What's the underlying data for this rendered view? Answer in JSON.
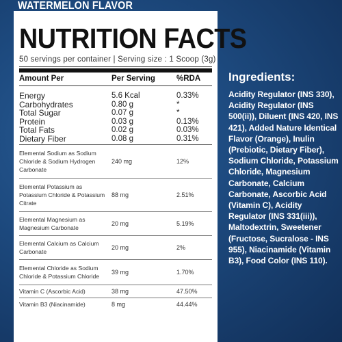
{
  "flavor": "WATERMELON FLAVOR",
  "title": "NUTRITION FACTS",
  "serving_info": "50 servings per container | Serving size : 1 Scoop (3g)",
  "columns": [
    "Amount Per",
    "Per Serving",
    "%RDA"
  ],
  "main_rows": [
    {
      "name": "Energy",
      "amount": "5.6 Kcal",
      "rda": "0.33%"
    },
    {
      "name": "Carbohydrates",
      "amount": "0.80 g",
      "rda": "*"
    },
    {
      "name": "Total Sugar",
      "amount": "0.07 g",
      "rda": "*"
    },
    {
      "name": "Protein",
      "amount": "0.03 g",
      "rda": "0.13%"
    },
    {
      "name": "Total Fats",
      "amount": "0.02 g",
      "rda": "0.03%"
    },
    {
      "name": "Dietary Fiber",
      "amount": "0.08 g",
      "rda": "0.31%"
    }
  ],
  "sub_rows": [
    {
      "name": "Elemental Sodium as Sodium Chloride & Sodium Hydrogen Carbonate",
      "amount": "240 mg",
      "rda": "12%"
    },
    {
      "name": "Elemental Potassium as Potassium Chloride & Potassium Citrate",
      "amount": "88 mg",
      "rda": "2.51%"
    },
    {
      "name": "Elemental Magnesium as Magnesium Carbonate",
      "amount": "20 mg",
      "rda": "5.19%"
    },
    {
      "name": "Elemental Calcium as Calcium Carbonate",
      "amount": "20 mg",
      "rda": "2%"
    },
    {
      "name": "Elemental Chloride as Sodium Chloride & Potassium Chloride",
      "amount": "39 mg",
      "rda": "1.70%"
    },
    {
      "name": "Vitamin C (Ascorbic Acid)",
      "amount": "38 mg",
      "rda": "47.50%"
    },
    {
      "name": "Vitamin B3 (Niacinamide)",
      "amount": "8 mg",
      "rda": "44.44%"
    }
  ],
  "ingredients_title": "Ingredients:",
  "ingredients_text": "Acidity Regulator (INS 330), Acidity Regulator (INS 500(ii)), Diluent (INS 420, INS 421), Added Nature Identical Flavor (Orange), Inulin (Prebiotic, Dietary Fiber), Sodium Chloride, Potassium Chloride, Magnesium Carbonate, Calcium Carbonate, Ascorbic Acid (Vitamin C), Acidity Regulator (INS 331(iii)), Maltodextrin, Sweetener (Fructose, Sucralose - INS 955), Niacinamide (Vitamin B3), Food Color (INS 110).",
  "colors": {
    "background": "#1d4a7f",
    "panel": "#ffffff",
    "text_on_bg": "#ffffff"
  }
}
